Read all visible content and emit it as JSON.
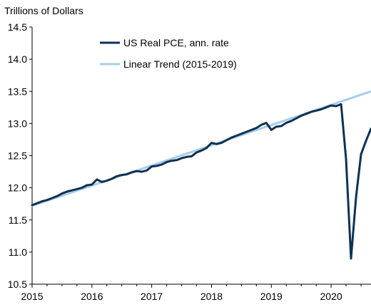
{
  "chart_data": {
    "type": "line",
    "title": "",
    "xlabel": "",
    "ylabel": "Trillions of Dollars",
    "xlim": [
      2015.0,
      2020.667
    ],
    "ylim": [
      10.5,
      14.5
    ],
    "x_ticks": [
      "2015",
      "2016",
      "2017",
      "2018",
      "2019",
      "2020"
    ],
    "y_ticks": [
      "14.5",
      "14.0",
      "13.5",
      "13.0",
      "12.5",
      "12.0",
      "11.5",
      "11.0",
      "10.5"
    ],
    "grid": false,
    "legend_position": "top-center",
    "series": [
      {
        "name": "US Real PCE, ann. rate",
        "color": "#0d3154",
        "x": [
          2015.0,
          2015.083,
          2015.167,
          2015.25,
          2015.333,
          2015.417,
          2015.5,
          2015.583,
          2015.667,
          2015.75,
          2015.833,
          2015.917,
          2016.0,
          2016.083,
          2016.167,
          2016.25,
          2016.333,
          2016.417,
          2016.5,
          2016.583,
          2016.667,
          2016.75,
          2016.833,
          2016.917,
          2017.0,
          2017.083,
          2017.167,
          2017.25,
          2017.333,
          2017.417,
          2017.5,
          2017.583,
          2017.667,
          2017.75,
          2017.833,
          2017.917,
          2018.0,
          2018.083,
          2018.167,
          2018.25,
          2018.333,
          2018.417,
          2018.5,
          2018.583,
          2018.667,
          2018.75,
          2018.833,
          2018.917,
          2019.0,
          2019.083,
          2019.167,
          2019.25,
          2019.333,
          2019.417,
          2019.5,
          2019.583,
          2019.667,
          2019.75,
          2019.833,
          2019.917,
          2020.0,
          2020.083,
          2020.167,
          2020.25,
          2020.333,
          2020.417,
          2020.5,
          2020.583,
          2020.667
        ],
        "values": [
          11.73,
          11.76,
          11.79,
          11.81,
          11.84,
          11.87,
          11.91,
          11.94,
          11.96,
          11.98,
          12.0,
          12.04,
          12.05,
          12.13,
          12.09,
          12.11,
          12.14,
          12.18,
          12.2,
          12.21,
          12.24,
          12.26,
          12.25,
          12.27,
          12.33,
          12.34,
          12.36,
          12.4,
          12.42,
          12.43,
          12.46,
          12.48,
          12.49,
          12.55,
          12.58,
          12.62,
          12.7,
          12.68,
          12.7,
          12.74,
          12.78,
          12.81,
          12.84,
          12.87,
          12.9,
          12.93,
          12.98,
          13.01,
          12.9,
          12.95,
          12.96,
          13.01,
          13.04,
          13.08,
          13.12,
          13.15,
          13.18,
          13.2,
          13.22,
          13.25,
          13.28,
          13.27,
          13.3,
          12.45,
          10.9,
          11.85,
          12.52,
          12.73,
          12.92
        ]
      },
      {
        "name": "Linear Trend (2015-2019)",
        "color": "#a9cde9",
        "x": [
          2015.0,
          2020.667
        ],
        "values": [
          11.72,
          13.5
        ]
      }
    ]
  }
}
